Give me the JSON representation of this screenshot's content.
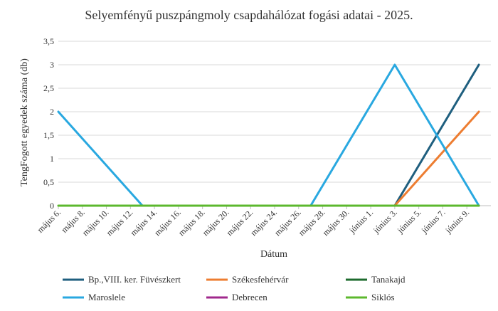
{
  "chart_data": {
    "type": "line",
    "title": "Selyemfényű puszpángmoly csapdahálózat fogási adatai - 2025.",
    "xlabel": "Dátum",
    "ylabel": "TengFogott egyedek száma (db)",
    "ylim": [
      0,
      3.5
    ],
    "yticks": [
      "0",
      "0,5",
      "1",
      "1,5",
      "2",
      "2,5",
      "3",
      "3,5"
    ],
    "grid": true,
    "legend_position": "bottom",
    "x": [
      "május 6.",
      "május 8.",
      "május 10.",
      "május 12.",
      "május 14.",
      "május 16.",
      "május 18.",
      "május 20.",
      "május 22.",
      "május 24.",
      "május 26.",
      "május 28.",
      "május 30.",
      "június 1.",
      "június 3.",
      "június 5.",
      "június 7.",
      "június 9."
    ],
    "series": [
      {
        "name": "Bp.,VIII. ker. Füvészkert",
        "color": "#1f5f7f",
        "points": [
          [
            "június 3.",
            0
          ],
          [
            "június 10.",
            3
          ]
        ]
      },
      {
        "name": "Székesfehérvár",
        "color": "#ed7d31",
        "points": [
          [
            "június 3.",
            0
          ],
          [
            "június 10.",
            2
          ]
        ]
      },
      {
        "name": "Tanakajd",
        "color": "#1e6b2e",
        "points": []
      },
      {
        "name": "Maroslele",
        "color": "#29a8e0",
        "points": [
          [
            "május 6.",
            2
          ],
          [
            "május 13.",
            0
          ],
          [
            "május 27.",
            0
          ],
          [
            "június 3.",
            3
          ],
          [
            "június 10.",
            0
          ]
        ]
      },
      {
        "name": "Debrecen",
        "color": "#a0288c",
        "points": []
      },
      {
        "name": "Siklós",
        "color": "#5cb82e",
        "points": [
          [
            "május 6.",
            0
          ],
          [
            "június 10.",
            0
          ]
        ]
      }
    ]
  }
}
